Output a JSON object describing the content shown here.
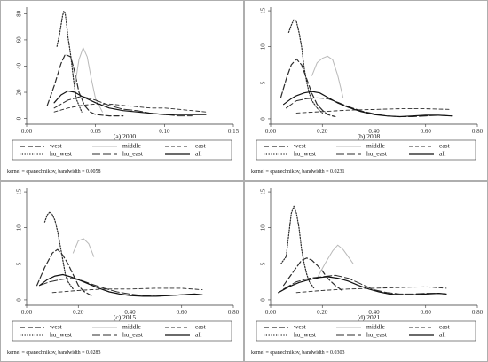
{
  "styles": {
    "west": {
      "dash": "6,3",
      "color": "#2b2b2b",
      "width": 1.2
    },
    "middle": {
      "dash": "",
      "color": "#b9b9b9",
      "width": 1.0
    },
    "east": {
      "dash": "4,3",
      "color": "#2b2b2b",
      "width": 0.9
    },
    "hu_west": {
      "dash": "1.2,1.6",
      "color": "#2b2b2b",
      "width": 1.2
    },
    "hu_east": {
      "dash": "9,3",
      "color": "#2b2b2b",
      "width": 1.0
    },
    "all": {
      "dash": "",
      "color": "#111111",
      "width": 1.2
    }
  },
  "legend_labels": [
    "west",
    "middle",
    "east",
    "hu_west",
    "hu_east",
    "all"
  ],
  "note": "kernel = epanechnikov, bandwidth = ",
  "chart_data": [
    {
      "type": "line",
      "caption": "(a) 2000",
      "bandwidth": "0.0058",
      "xlim": [
        0,
        0.15
      ],
      "ylim": [
        -3,
        85
      ],
      "xticks": [
        0,
        0.05,
        0.1,
        0.15
      ],
      "xtick_labels": [
        "0.00",
        "0.05",
        "0.10",
        "0.15"
      ],
      "yticks": [
        0,
        20,
        40,
        60,
        80
      ],
      "ytick_labels": [
        "0",
        "20",
        "40",
        "60",
        "80"
      ],
      "series": [
        {
          "name": "west",
          "x": [
            0.015,
            0.02,
            0.025,
            0.028,
            0.032,
            0.035,
            0.038,
            0.042,
            0.046,
            0.05,
            0.06,
            0.07
          ],
          "y": [
            10,
            25,
            42,
            49,
            47,
            35,
            20,
            10,
            5,
            3,
            2,
            2
          ]
        },
        {
          "name": "middle",
          "x": [
            0.035,
            0.038,
            0.041,
            0.044,
            0.047,
            0.05,
            0.055
          ],
          "y": [
            25,
            45,
            54,
            47,
            30,
            15,
            5
          ]
        },
        {
          "name": "east",
          "x": [
            0.02,
            0.03,
            0.04,
            0.05,
            0.06,
            0.07,
            0.08,
            0.09,
            0.1,
            0.11,
            0.12,
            0.13
          ],
          "y": [
            5,
            8,
            10,
            11,
            11,
            10,
            9,
            8,
            8,
            7,
            6,
            5
          ]
        },
        {
          "name": "hu_west",
          "x": [
            0.022,
            0.024,
            0.026,
            0.027,
            0.028,
            0.029,
            0.03,
            0.031,
            0.032,
            0.034,
            0.036,
            0.04
          ],
          "y": [
            55,
            65,
            78,
            82,
            80,
            72,
            62,
            55,
            48,
            30,
            15,
            5
          ]
        },
        {
          "name": "hu_east",
          "x": [
            0.02,
            0.03,
            0.04,
            0.05,
            0.06,
            0.07,
            0.08,
            0.09,
            0.1,
            0.11,
            0.12
          ],
          "y": [
            8,
            14,
            17,
            14,
            10,
            7,
            6,
            4,
            3,
            2,
            2
          ]
        },
        {
          "name": "all",
          "x": [
            0.02,
            0.025,
            0.03,
            0.035,
            0.04,
            0.05,
            0.06,
            0.07,
            0.08,
            0.09,
            0.1,
            0.11,
            0.12,
            0.13
          ],
          "y": [
            12,
            18,
            21,
            20,
            17,
            12,
            8,
            6,
            5,
            4,
            3,
            3,
            3,
            3
          ]
        }
      ]
    },
    {
      "type": "line",
      "caption": "(b) 2008",
      "bandwidth": "0.0231",
      "xlim": [
        0,
        0.8
      ],
      "ylim": [
        -0.5,
        15.5
      ],
      "xticks": [
        0,
        0.2,
        0.4,
        0.6,
        0.8
      ],
      "xtick_labels": [
        "0.00",
        "0.20",
        "0.40",
        "0.60",
        "0.80"
      ],
      "yticks": [
        0,
        5,
        10,
        15
      ],
      "ytick_labels": [
        "0",
        "5",
        "10",
        "15"
      ],
      "series": [
        {
          "name": "west",
          "x": [
            0.04,
            0.06,
            0.08,
            0.1,
            0.12,
            0.14,
            0.16,
            0.18,
            0.2,
            0.22,
            0.25
          ],
          "y": [
            3,
            5.5,
            7.5,
            8.3,
            7.5,
            5.5,
            3.5,
            2,
            1.2,
            0.6,
            0.3
          ]
        },
        {
          "name": "middle",
          "x": [
            0.16,
            0.18,
            0.2,
            0.22,
            0.24,
            0.26,
            0.28
          ],
          "y": [
            6,
            7.8,
            8.4,
            8.7,
            8.2,
            6,
            3
          ]
        },
        {
          "name": "east",
          "x": [
            0.1,
            0.2,
            0.3,
            0.4,
            0.5,
            0.6,
            0.7
          ],
          "y": [
            0.8,
            1,
            1.2,
            1.3,
            1.4,
            1.4,
            1.3
          ]
        },
        {
          "name": "hu_west",
          "x": [
            0.07,
            0.08,
            0.09,
            0.1,
            0.11,
            0.12,
            0.13,
            0.14,
            0.15,
            0.16,
            0.18,
            0.2
          ],
          "y": [
            12,
            13,
            13.8,
            13.5,
            12,
            10,
            7,
            5,
            3.5,
            2.5,
            1.5,
            0.8
          ]
        },
        {
          "name": "hu_east",
          "x": [
            0.06,
            0.1,
            0.14,
            0.18,
            0.22,
            0.26,
            0.3,
            0.35,
            0.4,
            0.45,
            0.5,
            0.55,
            0.6,
            0.65,
            0.7
          ],
          "y": [
            1.5,
            2.5,
            2.8,
            2.9,
            2.8,
            2.3,
            1.7,
            1.1,
            0.7,
            0.4,
            0.3,
            0.3,
            0.4,
            0.5,
            0.4
          ]
        },
        {
          "name": "all",
          "x": [
            0.05,
            0.08,
            0.1,
            0.13,
            0.16,
            0.19,
            0.22,
            0.26,
            0.3,
            0.35,
            0.4,
            0.45,
            0.5,
            0.55,
            0.6,
            0.65,
            0.7
          ],
          "y": [
            2,
            2.8,
            3.2,
            3.6,
            3.8,
            3.6,
            3,
            2.2,
            1.6,
            1,
            0.6,
            0.4,
            0.3,
            0.4,
            0.5,
            0.5,
            0.4
          ]
        }
      ]
    },
    {
      "type": "line",
      "caption": "(c) 2015",
      "bandwidth": "0.0283",
      "xlim": [
        0,
        0.8
      ],
      "ylim": [
        -0.5,
        15.5
      ],
      "xticks": [
        0,
        0.2,
        0.4,
        0.6,
        0.8
      ],
      "xtick_labels": [
        "0.00",
        "0.20",
        "0.40",
        "0.60",
        "0.80"
      ],
      "yticks": [
        0,
        5,
        10,
        15
      ],
      "ytick_labels": [
        "0",
        "5",
        "10",
        "15"
      ],
      "series": [
        {
          "name": "west",
          "x": [
            0.04,
            0.07,
            0.1,
            0.12,
            0.14,
            0.16,
            0.18,
            0.2,
            0.22,
            0.25
          ],
          "y": [
            2,
            4.5,
            6.5,
            7,
            6.2,
            5,
            3.5,
            2,
            1.2,
            0.6
          ]
        },
        {
          "name": "middle",
          "x": [
            0.18,
            0.2,
            0.22,
            0.24,
            0.26
          ],
          "y": [
            6.5,
            8.2,
            8.5,
            7.8,
            6
          ]
        },
        {
          "name": "east",
          "x": [
            0.1,
            0.2,
            0.3,
            0.4,
            0.5,
            0.6,
            0.68
          ],
          "y": [
            1,
            1.3,
            1.5,
            1.5,
            1.6,
            1.6,
            1.4
          ]
        },
        {
          "name": "hu_west",
          "x": [
            0.07,
            0.08,
            0.09,
            0.1,
            0.11,
            0.12,
            0.13,
            0.14,
            0.15,
            0.16,
            0.18
          ],
          "y": [
            10.8,
            11.8,
            12.2,
            11.8,
            11,
            9.5,
            7.5,
            5.5,
            3.5,
            2.5,
            1.5
          ]
        },
        {
          "name": "hu_east",
          "x": [
            0.05,
            0.09,
            0.13,
            0.17,
            0.21,
            0.25,
            0.3,
            0.35,
            0.4,
            0.45,
            0.5,
            0.55,
            0.6,
            0.65,
            0.68
          ],
          "y": [
            2,
            2.5,
            2.8,
            3,
            2.7,
            2.2,
            1.6,
            1.1,
            0.8,
            0.6,
            0.5,
            0.6,
            0.7,
            0.8,
            0.7
          ]
        },
        {
          "name": "all",
          "x": [
            0.05,
            0.08,
            0.11,
            0.14,
            0.17,
            0.2,
            0.24,
            0.28,
            0.32,
            0.36,
            0.4,
            0.45,
            0.5,
            0.55,
            0.6,
            0.65,
            0.68
          ],
          "y": [
            2,
            2.8,
            3.3,
            3.5,
            3.2,
            2.8,
            2.2,
            1.6,
            1.1,
            0.8,
            0.6,
            0.5,
            0.5,
            0.6,
            0.7,
            0.8,
            0.7
          ]
        }
      ]
    },
    {
      "type": "line",
      "caption": "(d) 2021",
      "bandwidth": "0.0303",
      "xlim": [
        0,
        0.8
      ],
      "ylim": [
        -0.5,
        15.5
      ],
      "xticks": [
        0,
        0.2,
        0.4,
        0.6,
        0.8
      ],
      "xtick_labels": [
        "0.00",
        "0.20",
        "0.40",
        "0.60",
        "0.80"
      ],
      "yticks": [
        0,
        5,
        10,
        15
      ],
      "ytick_labels": [
        "0",
        "5",
        "10",
        "15"
      ],
      "series": [
        {
          "name": "west",
          "x": [
            0.05,
            0.08,
            0.1,
            0.12,
            0.14,
            0.16,
            0.18,
            0.2,
            0.22,
            0.25,
            0.28
          ],
          "y": [
            2,
            3.5,
            4.5,
            5.5,
            5.8,
            5.5,
            4.8,
            4,
            3,
            2,
            1.2
          ]
        },
        {
          "name": "middle",
          "x": [
            0.18,
            0.21,
            0.24,
            0.26,
            0.28,
            0.3,
            0.32
          ],
          "y": [
            3,
            5,
            6.8,
            7.6,
            7,
            6,
            5
          ]
        },
        {
          "name": "east",
          "x": [
            0.1,
            0.2,
            0.3,
            0.4,
            0.5,
            0.6,
            0.68
          ],
          "y": [
            1,
            1.3,
            1.5,
            1.6,
            1.7,
            1.8,
            1.6
          ]
        },
        {
          "name": "hu_west",
          "x": [
            0.04,
            0.06,
            0.07,
            0.08,
            0.09,
            0.1,
            0.11,
            0.12,
            0.13,
            0.14,
            0.15,
            0.17
          ],
          "y": [
            5,
            6,
            9,
            12,
            13,
            12,
            10,
            7,
            5,
            3.5,
            2.5,
            1.5
          ]
        },
        {
          "name": "hu_east",
          "x": [
            0.05,
            0.1,
            0.15,
            0.2,
            0.25,
            0.3,
            0.35,
            0.4,
            0.45,
            0.5,
            0.55,
            0.6,
            0.65,
            0.68
          ],
          "y": [
            1.5,
            2.5,
            3,
            3.2,
            3.4,
            3,
            2.2,
            1.4,
            1,
            0.8,
            0.8,
            0.9,
            0.9,
            0.8
          ]
        },
        {
          "name": "all",
          "x": [
            0.03,
            0.07,
            0.11,
            0.15,
            0.19,
            0.22,
            0.26,
            0.3,
            0.34,
            0.38,
            0.42,
            0.46,
            0.5,
            0.55,
            0.6,
            0.65,
            0.68
          ],
          "y": [
            1,
            1.8,
            2.4,
            2.8,
            3.1,
            3.2,
            3,
            2.6,
            2,
            1.5,
            1.1,
            0.8,
            0.7,
            0.7,
            0.8,
            0.9,
            0.8
          ]
        }
      ]
    }
  ]
}
